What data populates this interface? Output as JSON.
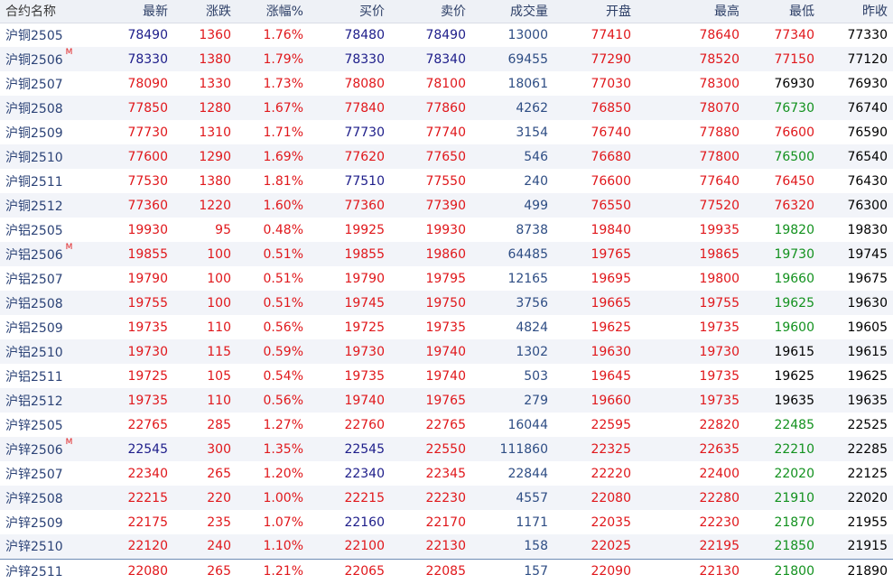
{
  "header": {
    "name": "合约名称",
    "latest": "最新",
    "change": "涨跌",
    "change_pct": "涨幅%",
    "bid": "买价",
    "ask": "卖价",
    "volume": "成交量",
    "open": "开盘",
    "high": "最高",
    "low": "最低",
    "prev_close": "昨收"
  },
  "colors": {
    "up": "#e0171b",
    "down": "#12911e",
    "neutral": "#000000",
    "navy": "#1d1d8a",
    "volume": "#2e4d84"
  },
  "rows": [
    {
      "name": "沪铜2505",
      "badge": "",
      "latest": "78490",
      "change": "1360",
      "pct": "1.76%",
      "bid": "78480",
      "ask": "78490",
      "volume": "13000",
      "open": "77410",
      "high": "78640",
      "low": "77340",
      "prev": "77330"
    },
    {
      "name": "沪铜2506",
      "badge": "M",
      "latest": "78330",
      "change": "1380",
      "pct": "1.79%",
      "bid": "78330",
      "ask": "78340",
      "volume": "69455",
      "open": "77290",
      "high": "78520",
      "low": "77150",
      "prev": "77120"
    },
    {
      "name": "沪铜2507",
      "badge": "",
      "latest": "78090",
      "change": "1330",
      "pct": "1.73%",
      "bid": "78080",
      "ask": "78100",
      "volume": "18061",
      "open": "77030",
      "high": "78300",
      "low": "76930",
      "prev": "76930"
    },
    {
      "name": "沪铜2508",
      "badge": "",
      "latest": "77850",
      "change": "1280",
      "pct": "1.67%",
      "bid": "77840",
      "ask": "77860",
      "volume": "4262",
      "open": "76850",
      "high": "78070",
      "low": "76730",
      "prev": "76740"
    },
    {
      "name": "沪铜2509",
      "badge": "",
      "latest": "77730",
      "change": "1310",
      "pct": "1.71%",
      "bid": "77730",
      "ask": "77740",
      "volume": "3154",
      "open": "76740",
      "high": "77880",
      "low": "76600",
      "prev": "76590"
    },
    {
      "name": "沪铜2510",
      "badge": "",
      "latest": "77600",
      "change": "1290",
      "pct": "1.69%",
      "bid": "77620",
      "ask": "77650",
      "volume": "546",
      "open": "76680",
      "high": "77800",
      "low": "76500",
      "prev": "76540"
    },
    {
      "name": "沪铜2511",
      "badge": "",
      "latest": "77530",
      "change": "1380",
      "pct": "1.81%",
      "bid": "77510",
      "ask": "77550",
      "volume": "240",
      "open": "76600",
      "high": "77640",
      "low": "76450",
      "prev": "76430"
    },
    {
      "name": "沪铜2512",
      "badge": "",
      "latest": "77360",
      "change": "1220",
      "pct": "1.60%",
      "bid": "77360",
      "ask": "77390",
      "volume": "499",
      "open": "76550",
      "high": "77520",
      "low": "76320",
      "prev": "76300"
    },
    {
      "name": "沪铝2505",
      "badge": "",
      "latest": "19930",
      "change": "95",
      "pct": "0.48%",
      "bid": "19925",
      "ask": "19930",
      "volume": "8738",
      "open": "19840",
      "high": "19935",
      "low": "19820",
      "prev": "19830"
    },
    {
      "name": "沪铝2506",
      "badge": "M",
      "latest": "19855",
      "change": "100",
      "pct": "0.51%",
      "bid": "19855",
      "ask": "19860",
      "volume": "64485",
      "open": "19765",
      "high": "19865",
      "low": "19730",
      "prev": "19745"
    },
    {
      "name": "沪铝2507",
      "badge": "",
      "latest": "19790",
      "change": "100",
      "pct": "0.51%",
      "bid": "19790",
      "ask": "19795",
      "volume": "12165",
      "open": "19695",
      "high": "19800",
      "low": "19660",
      "prev": "19675"
    },
    {
      "name": "沪铝2508",
      "badge": "",
      "latest": "19755",
      "change": "100",
      "pct": "0.51%",
      "bid": "19745",
      "ask": "19750",
      "volume": "3756",
      "open": "19665",
      "high": "19755",
      "low": "19625",
      "prev": "19630"
    },
    {
      "name": "沪铝2509",
      "badge": "",
      "latest": "19735",
      "change": "110",
      "pct": "0.56%",
      "bid": "19725",
      "ask": "19735",
      "volume": "4824",
      "open": "19625",
      "high": "19735",
      "low": "19600",
      "prev": "19605"
    },
    {
      "name": "沪铝2510",
      "badge": "",
      "latest": "19730",
      "change": "115",
      "pct": "0.59%",
      "bid": "19730",
      "ask": "19740",
      "volume": "1302",
      "open": "19630",
      "high": "19730",
      "low": "19615",
      "prev": "19615"
    },
    {
      "name": "沪铝2511",
      "badge": "",
      "latest": "19725",
      "change": "105",
      "pct": "0.54%",
      "bid": "19735",
      "ask": "19740",
      "volume": "503",
      "open": "19645",
      "high": "19735",
      "low": "19625",
      "prev": "19625"
    },
    {
      "name": "沪铝2512",
      "badge": "",
      "latest": "19735",
      "change": "110",
      "pct": "0.56%",
      "bid": "19740",
      "ask": "19765",
      "volume": "279",
      "open": "19660",
      "high": "19735",
      "low": "19635",
      "prev": "19635"
    },
    {
      "name": "沪锌2505",
      "badge": "",
      "latest": "22765",
      "change": "285",
      "pct": "1.27%",
      "bid": "22760",
      "ask": "22765",
      "volume": "16044",
      "open": "22595",
      "high": "22820",
      "low": "22485",
      "prev": "22525"
    },
    {
      "name": "沪锌2506",
      "badge": "M",
      "latest": "22545",
      "change": "300",
      "pct": "1.35%",
      "bid": "22545",
      "ask": "22550",
      "volume": "111860",
      "open": "22325",
      "high": "22635",
      "low": "22210",
      "prev": "22285"
    },
    {
      "name": "沪锌2507",
      "badge": "",
      "latest": "22340",
      "change": "265",
      "pct": "1.20%",
      "bid": "22340",
      "ask": "22345",
      "volume": "22844",
      "open": "22220",
      "high": "22400",
      "low": "22020",
      "prev": "22125"
    },
    {
      "name": "沪锌2508",
      "badge": "",
      "latest": "22215",
      "change": "220",
      "pct": "1.00%",
      "bid": "22215",
      "ask": "22230",
      "volume": "4557",
      "open": "22080",
      "high": "22280",
      "low": "21910",
      "prev": "22020"
    },
    {
      "name": "沪锌2509",
      "badge": "",
      "latest": "22175",
      "change": "235",
      "pct": "1.07%",
      "bid": "22160",
      "ask": "22170",
      "volume": "1171",
      "open": "22035",
      "high": "22230",
      "low": "21870",
      "prev": "21955"
    },
    {
      "name": "沪锌2510",
      "badge": "",
      "latest": "22120",
      "change": "240",
      "pct": "1.10%",
      "bid": "22100",
      "ask": "22130",
      "volume": "158",
      "open": "22025",
      "high": "22195",
      "low": "21850",
      "prev": "21915"
    },
    {
      "name": "沪锌2511",
      "badge": "",
      "latest": "22080",
      "change": "265",
      "pct": "1.21%",
      "bid": "22065",
      "ask": "22085",
      "volume": "157",
      "open": "22090",
      "high": "22130",
      "low": "21800",
      "prev": "21890"
    }
  ]
}
